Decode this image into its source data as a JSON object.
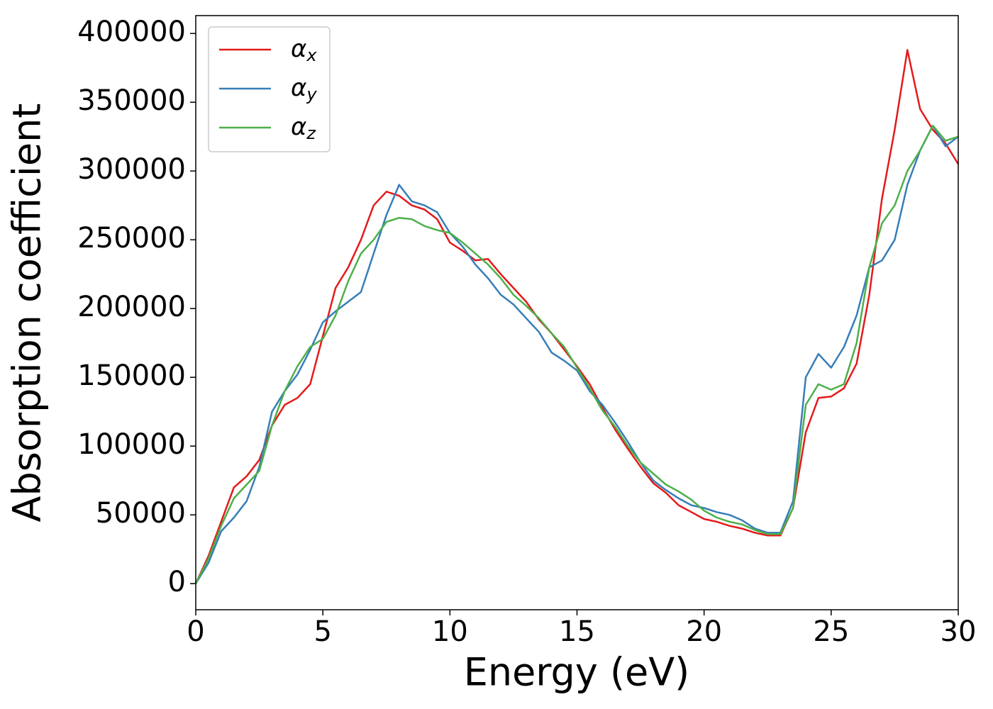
{
  "chart_data": {
    "type": "line",
    "xlabel": "Energy (eV)",
    "ylabel": "Absorption coefficient",
    "x": [
      0,
      0.5,
      1,
      1.5,
      2,
      2.5,
      3,
      3.5,
      4,
      4.5,
      5,
      5.5,
      6,
      6.5,
      7,
      7.5,
      8,
      8.5,
      9,
      9.5,
      10,
      10.5,
      11,
      11.5,
      12,
      12.5,
      13,
      13.5,
      14,
      14.5,
      15,
      15.5,
      16,
      16.5,
      17,
      17.5,
      18,
      18.5,
      19,
      19.5,
      20,
      20.5,
      21,
      21.5,
      22,
      22.5,
      23,
      23.5,
      24,
      24.5,
      25,
      25.5,
      26,
      26.5,
      27,
      27.5,
      28,
      28.5,
      29,
      29.5,
      30
    ],
    "series": [
      {
        "name": "αx",
        "color": "#e41a1c",
        "values": [
          0,
          20000,
          45000,
          70000,
          78000,
          90000,
          115000,
          130000,
          135000,
          145000,
          180000,
          215000,
          230000,
          250000,
          275000,
          285000,
          282000,
          275000,
          272000,
          265000,
          248000,
          242000,
          235000,
          236000,
          225000,
          215000,
          205000,
          192000,
          182000,
          170000,
          158000,
          145000,
          128000,
          112000,
          98000,
          85000,
          73000,
          66000,
          57000,
          52000,
          47000,
          45000,
          42000,
          40000,
          37000,
          35000,
          35000,
          55000,
          110000,
          135000,
          136000,
          142000,
          160000,
          210000,
          280000,
          330000,
          388000,
          345000,
          330000,
          320000,
          305000
        ]
      },
      {
        "name": "αy",
        "color": "#377eb8",
        "values": [
          0,
          15000,
          38000,
          48000,
          60000,
          85000,
          125000,
          140000,
          152000,
          170000,
          190000,
          198000,
          205000,
          212000,
          240000,
          268000,
          290000,
          278000,
          275000,
          270000,
          255000,
          245000,
          232000,
          222000,
          210000,
          203000,
          193000,
          183000,
          168000,
          162000,
          155000,
          140000,
          130000,
          117000,
          103000,
          88000,
          75000,
          68000,
          62000,
          57000,
          55000,
          52000,
          50000,
          46000,
          40000,
          37000,
          37000,
          60000,
          150000,
          167000,
          157000,
          172000,
          195000,
          230000,
          235000,
          250000,
          290000,
          315000,
          333000,
          318000,
          325000
        ]
      },
      {
        "name": "αz",
        "color": "#4daf4a",
        "values": [
          0,
          18000,
          42000,
          62000,
          72000,
          82000,
          115000,
          140000,
          158000,
          172000,
          178000,
          195000,
          220000,
          240000,
          250000,
          263000,
          266000,
          265000,
          260000,
          257000,
          255000,
          248000,
          240000,
          232000,
          222000,
          210000,
          202000,
          193000,
          182000,
          172000,
          157000,
          142000,
          126000,
          114000,
          100000,
          88000,
          80000,
          72000,
          67000,
          61000,
          53000,
          48000,
          45000,
          43000,
          39000,
          36000,
          36000,
          55000,
          130000,
          145000,
          141000,
          145000,
          175000,
          230000,
          262000,
          275000,
          300000,
          315000,
          333000,
          322000,
          325000
        ]
      }
    ],
    "xlim": [
      0,
      30
    ],
    "xticks": [
      0,
      5,
      10,
      15,
      20,
      25,
      30
    ],
    "ylim": [
      -19000,
      413000
    ],
    "yticks": [
      0,
      50000,
      100000,
      150000,
      200000,
      250000,
      300000,
      350000,
      400000
    ],
    "grid": false,
    "legend": "upper left"
  }
}
